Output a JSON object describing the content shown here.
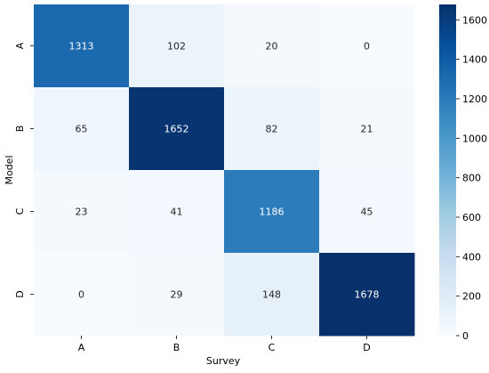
{
  "chart_data": {
    "type": "heatmap",
    "title": "",
    "xlabel": "Survey",
    "ylabel": "Model",
    "x_categories": [
      "A",
      "B",
      "C",
      "D"
    ],
    "y_categories": [
      "A",
      "B",
      "C",
      "D"
    ],
    "values": [
      [
        1313,
        102,
        20,
        0
      ],
      [
        65,
        1652,
        82,
        21
      ],
      [
        23,
        41,
        1186,
        45
      ],
      [
        0,
        29,
        148,
        1678
      ]
    ],
    "colorbar": {
      "range": [
        0,
        1678
      ],
      "ticks": [
        0,
        200,
        400,
        600,
        800,
        1000,
        1200,
        1400,
        1600
      ],
      "colormap": "Blues"
    },
    "annotation_colors": {
      "dark_cells": "#ffffff",
      "light_cells": "#262626"
    }
  }
}
